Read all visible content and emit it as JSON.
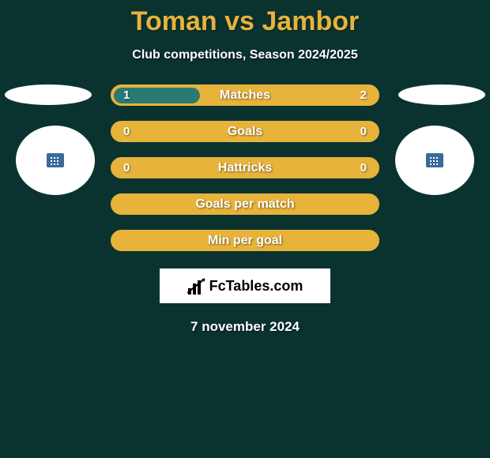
{
  "layout": {
    "background_color": "#0a3330",
    "accent_color": "#e7b33a",
    "fill_color": "#2a7a74",
    "bar_border_color": "#e7b33a",
    "title_color": "#e7b33a",
    "white": "#ffffff",
    "badge_border_left": "#3a6a9a",
    "badge_border_right": "#3a6a9a"
  },
  "title": "Toman vs Jambor",
  "subtitle": "Club competitions, Season 2024/2025",
  "bars": [
    {
      "label": "Matches",
      "left": "1",
      "right": "2",
      "fill_pct": 33
    },
    {
      "label": "Goals",
      "left": "0",
      "right": "0",
      "fill_pct": 0
    },
    {
      "label": "Hattricks",
      "left": "0",
      "right": "0",
      "fill_pct": 0
    },
    {
      "label": "Goals per match",
      "left": "",
      "right": "",
      "fill_pct": 0
    },
    {
      "label": "Min per goal",
      "left": "",
      "right": "",
      "fill_pct": 0
    }
  ],
  "logo_text": "FcTables.com",
  "date": "7 november 2024"
}
